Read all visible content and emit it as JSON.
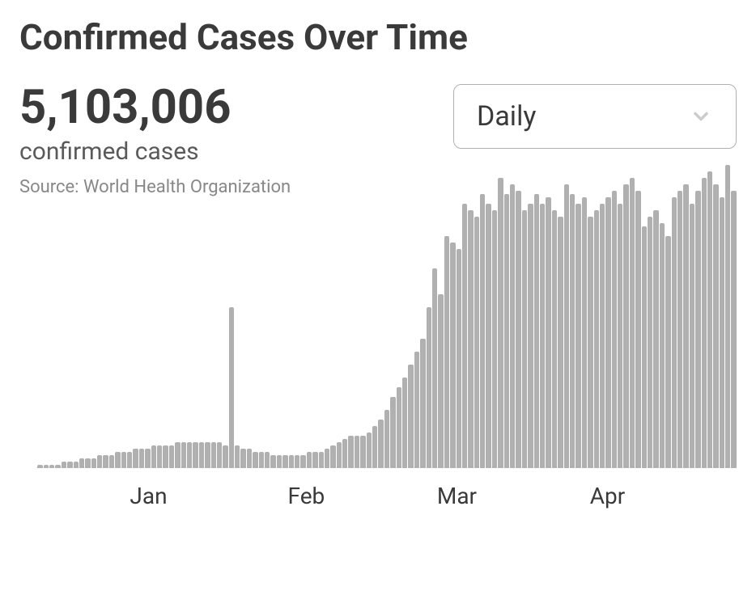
{
  "title": "Confirmed Cases Over Time",
  "total": "5,103,006",
  "subtitle": "confirmed cases",
  "source_label": "Source:",
  "source_name": "World Health Organization",
  "dropdown": {
    "selected": "Daily"
  },
  "chart": {
    "type": "bar",
    "bar_color": "#b0b0b0",
    "background_color": "#ffffff",
    "x_labels": [
      {
        "text": "Jan",
        "position_pct": 18
      },
      {
        "text": "Feb",
        "position_pct": 40
      },
      {
        "text": "Mar",
        "position_pct": 61
      },
      {
        "text": "Apr",
        "position_pct": 82
      }
    ],
    "x_label_fontsize": 28,
    "x_label_color": "#3a3a3a",
    "values": [
      0,
      0,
      0,
      1,
      1,
      1,
      1,
      2,
      2,
      2,
      3,
      3,
      3,
      4,
      4,
      4,
      5,
      5,
      5,
      6,
      6,
      6,
      7,
      7,
      7,
      7,
      8,
      8,
      8,
      8,
      8,
      8,
      8,
      8,
      7,
      50,
      7,
      6,
      6,
      5,
      5,
      5,
      4,
      4,
      4,
      4,
      4,
      4,
      5,
      5,
      5,
      6,
      7,
      8,
      9,
      10,
      10,
      10,
      11,
      13,
      15,
      18,
      22,
      25,
      28,
      32,
      36,
      40,
      50,
      62,
      54,
      72,
      70,
      68,
      82,
      80,
      78,
      85,
      82,
      80,
      90,
      85,
      88,
      86,
      80,
      82,
      85,
      82,
      84,
      80,
      78,
      88,
      85,
      82,
      84,
      78,
      80,
      82,
      84,
      86,
      82,
      88,
      90,
      86,
      75,
      78,
      80,
      76,
      72,
      84,
      86,
      88,
      82,
      86,
      90,
      92,
      88,
      84,
      94,
      86
    ]
  }
}
